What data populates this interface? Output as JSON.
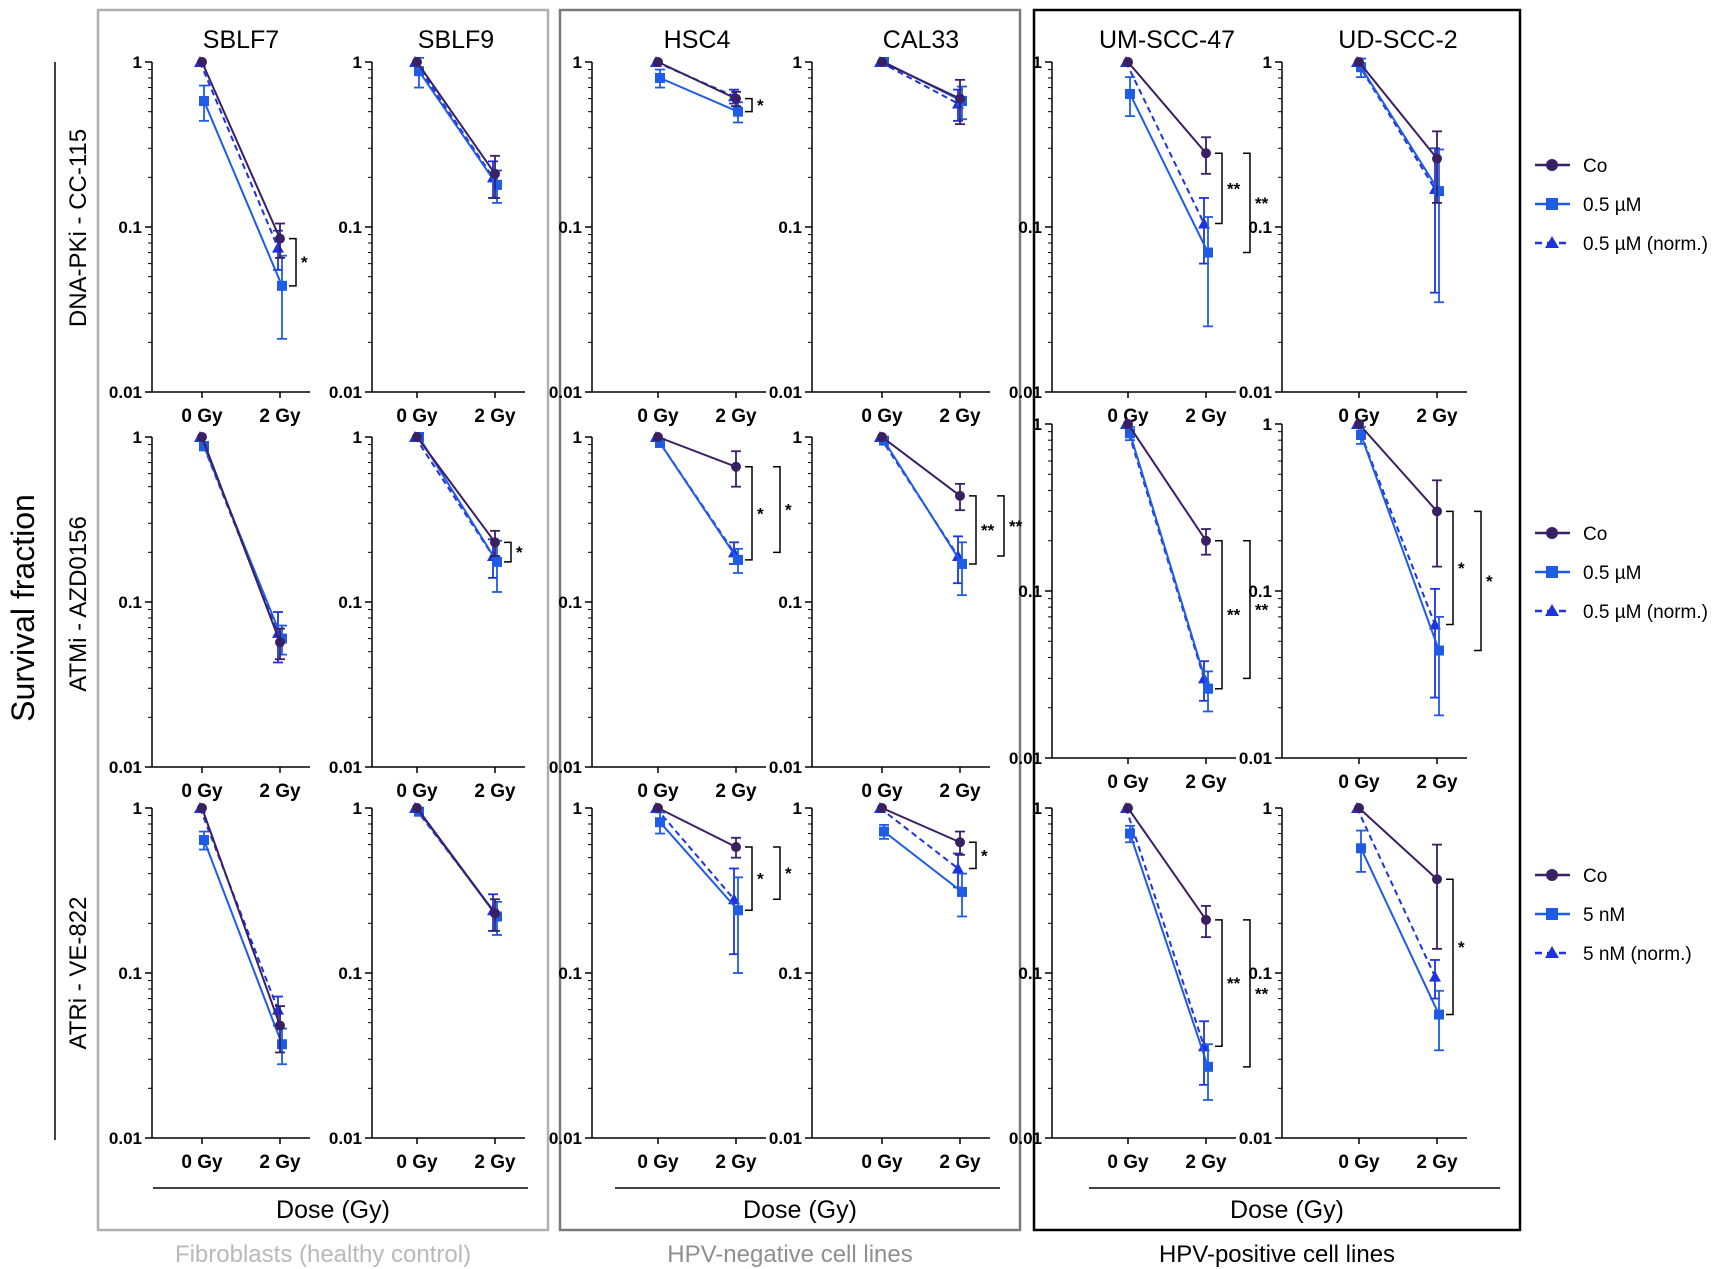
{
  "figure": {
    "y_axis_label": "Survival fraction",
    "colors": {
      "co": "#3b1f63",
      "treated": "#1f5ce6",
      "normalized": "#1e33e0",
      "bracket": "#000000"
    },
    "groups": [
      {
        "label": "Fibroblasts (healthy control)",
        "x_axis_label": "Dose (Gy)",
        "color": "#b9b9b9",
        "border_color": "#b0b0b0"
      },
      {
        "label": "HPV-negative cell lines",
        "x_axis_label": "Dose (Gy)",
        "color": "#8f8f8f",
        "border_color": "#7a7a7a"
      },
      {
        "label": "HPV-positive cell lines",
        "x_axis_label": "Dose (Gy)",
        "color": "#000000",
        "border_color": "#000000"
      }
    ],
    "rows": [
      {
        "label": "DNA-PKi - CC-115",
        "legend": [
          "Co",
          "0.5 µM",
          "0.5 µM (norm.)"
        ]
      },
      {
        "label": "ATMi - AZD0156",
        "legend": [
          "Co",
          "0.5 µM",
          "0.5 µM (norm.)"
        ]
      },
      {
        "label": "ATRi - VE-822",
        "legend": [
          "Co",
          "5 nM",
          "5 nM (norm.)"
        ]
      }
    ],
    "columns": [
      "SBLF7",
      "SBLF9",
      "HSC4",
      "CAL33",
      "UM-SCC-47",
      "UD-SCC-2"
    ],
    "y_tick_labels": [
      "1",
      "0.1",
      "0.01"
    ],
    "x_tick_labels": [
      "0 Gy",
      "2 Gy"
    ]
  },
  "chart_data": {
    "type": "line",
    "y_scale": "log",
    "ylim": [
      0.01,
      1
    ],
    "x": [
      "0 Gy",
      "2 Gy"
    ],
    "series_names": [
      "Co",
      "treated",
      "treated (norm.)"
    ],
    "panels": [
      {
        "row": 0,
        "col": 0,
        "cell": "SBLF7",
        "co": [
          1,
          0.085
        ],
        "tr": [
          0.58,
          0.044
        ],
        "nm": [
          1,
          0.075
        ],
        "e_co": [
          0,
          0.02
        ],
        "e_tr": [
          0.14,
          0.023
        ],
        "e_nm": [
          0,
          0.02
        ],
        "sig": [
          {
            "a": "co",
            "b": "tr",
            "label": "*"
          }
        ]
      },
      {
        "row": 0,
        "col": 1,
        "cell": "SBLF9",
        "co": [
          1,
          0.21
        ],
        "tr": [
          0.88,
          0.18
        ],
        "nm": [
          1,
          0.2
        ],
        "e_co": [
          0,
          0.06
        ],
        "e_tr": [
          0.18,
          0.04
        ],
        "e_nm": [
          0,
          0.05
        ],
        "sig": []
      },
      {
        "row": 0,
        "col": 2,
        "cell": "HSC4",
        "co": [
          1,
          0.6
        ],
        "tr": [
          0.8,
          0.5
        ],
        "nm": [
          1,
          0.62
        ],
        "e_co": [
          0,
          0.06
        ],
        "e_tr": [
          0.1,
          0.07
        ],
        "e_nm": [
          0,
          0.06
        ],
        "sig": [
          {
            "a": "co",
            "b": "tr",
            "label": "*"
          }
        ]
      },
      {
        "row": 0,
        "col": 3,
        "cell": "CAL33",
        "co": [
          1,
          0.6
        ],
        "tr": [
          1,
          0.58
        ],
        "nm": [
          1,
          0.56
        ],
        "e_co": [
          0,
          0.18
        ],
        "e_tr": [
          0,
          0.13
        ],
        "e_nm": [
          0,
          0.12
        ],
        "sig": []
      },
      {
        "row": 0,
        "col": 4,
        "cell": "UM-SCC-47",
        "co": [
          1,
          0.28
        ],
        "tr": [
          0.64,
          0.07
        ],
        "nm": [
          1,
          0.105
        ],
        "e_co": [
          0,
          0.07
        ],
        "e_tr": [
          0.17,
          0.045
        ],
        "e_nm": [
          0,
          0.045
        ],
        "sig": [
          {
            "a": "co",
            "b": "nm",
            "label": "**"
          },
          {
            "a": "co",
            "b": "tr",
            "label": "**"
          }
        ]
      },
      {
        "row": 0,
        "col": 5,
        "cell": "UD-SCC-2",
        "co": [
          1,
          0.26
        ],
        "tr": [
          0.93,
          0.165
        ],
        "nm": [
          1,
          0.17
        ],
        "e_co": [
          0,
          0.12
        ],
        "e_tr": [
          0.12,
          0.13
        ],
        "e_nm": [
          0,
          0.13
        ],
        "sig": []
      },
      {
        "row": 1,
        "col": 0,
        "cell": "SBLF7",
        "co": [
          1,
          0.057
        ],
        "tr": [
          0.88,
          0.06
        ],
        "nm": [
          1,
          0.065
        ],
        "e_co": [
          0,
          0.012
        ],
        "e_tr": [
          0.05,
          0.012
        ],
        "e_nm": [
          0,
          0.022
        ],
        "sig": []
      },
      {
        "row": 1,
        "col": 1,
        "cell": "SBLF9",
        "co": [
          1,
          0.23
        ],
        "tr": [
          1,
          0.175
        ],
        "nm": [
          1,
          0.19
        ],
        "e_co": [
          0,
          0.04
        ],
        "e_tr": [
          0,
          0.06
        ],
        "e_nm": [
          0,
          0.05
        ],
        "sig": [
          {
            "a": "co",
            "b": "tr",
            "label": "*"
          }
        ]
      },
      {
        "row": 1,
        "col": 2,
        "cell": "HSC4",
        "co": [
          1,
          0.66
        ],
        "tr": [
          0.92,
          0.18
        ],
        "nm": [
          1,
          0.2
        ],
        "e_co": [
          0,
          0.16
        ],
        "e_tr": [
          0.04,
          0.03
        ],
        "e_nm": [
          0,
          0.03
        ],
        "sig": [
          {
            "a": "co",
            "b": "tr",
            "label": "*"
          },
          {
            "a": "co",
            "b": "nm",
            "label": "*"
          }
        ]
      },
      {
        "row": 1,
        "col": 3,
        "cell": "CAL33",
        "co": [
          1,
          0.44
        ],
        "tr": [
          0.95,
          0.17
        ],
        "nm": [
          1,
          0.19
        ],
        "e_co": [
          0,
          0.08
        ],
        "e_tr": [
          0.04,
          0.06
        ],
        "e_nm": [
          0,
          0.06
        ],
        "sig": [
          {
            "a": "co",
            "b": "tr",
            "label": "**"
          },
          {
            "a": "co",
            "b": "nm",
            "label": "**"
          }
        ]
      },
      {
        "row": 1,
        "col": 4,
        "cell": "UM-SCC-47",
        "co": [
          1,
          0.2
        ],
        "tr": [
          0.88,
          0.026
        ],
        "nm": [
          1,
          0.03
        ],
        "e_co": [
          0,
          0.035
        ],
        "e_tr": [
          0.08,
          0.007
        ],
        "e_nm": [
          0,
          0.008
        ],
        "sig": [
          {
            "a": "co",
            "b": "tr",
            "label": "**"
          },
          {
            "a": "co",
            "b": "nm",
            "label": "**"
          }
        ]
      },
      {
        "row": 1,
        "col": 5,
        "cell": "UD-SCC-2",
        "co": [
          1,
          0.3
        ],
        "tr": [
          0.86,
          0.044
        ],
        "nm": [
          1,
          0.063
        ],
        "e_co": [
          0,
          0.16
        ],
        "e_tr": [
          0.1,
          0.026
        ],
        "e_nm": [
          0,
          0.04
        ],
        "sig": [
          {
            "a": "co",
            "b": "nm",
            "label": "*"
          },
          {
            "a": "co",
            "b": "tr",
            "label": "*"
          }
        ]
      },
      {
        "row": 2,
        "col": 0,
        "cell": "SBLF7",
        "co": [
          1,
          0.048
        ],
        "tr": [
          0.64,
          0.037
        ],
        "nm": [
          1,
          0.06
        ],
        "e_co": [
          0,
          0.015
        ],
        "e_tr": [
          0.08,
          0.009
        ],
        "e_nm": [
          0,
          0.012
        ],
        "sig": []
      },
      {
        "row": 2,
        "col": 1,
        "cell": "SBLF9",
        "co": [
          1,
          0.23
        ],
        "tr": [
          0.95,
          0.22
        ],
        "nm": [
          1,
          0.24
        ],
        "e_co": [
          0,
          0.05
        ],
        "e_tr": [
          0.04,
          0.05
        ],
        "e_nm": [
          0,
          0.06
        ],
        "sig": []
      },
      {
        "row": 2,
        "col": 2,
        "cell": "HSC4",
        "co": [
          1,
          0.58
        ],
        "tr": [
          0.82,
          0.24
        ],
        "nm": [
          1,
          0.28
        ],
        "e_co": [
          0,
          0.08
        ],
        "e_tr": [
          0.12,
          0.14
        ],
        "e_nm": [
          0,
          0.15
        ],
        "sig": [
          {
            "a": "co",
            "b": "tr",
            "label": "*"
          },
          {
            "a": "co",
            "b": "nm",
            "label": "*"
          }
        ]
      },
      {
        "row": 2,
        "col": 3,
        "cell": "CAL33",
        "co": [
          1,
          0.62
        ],
        "tr": [
          0.72,
          0.31
        ],
        "nm": [
          1,
          0.43
        ],
        "e_co": [
          0,
          0.1
        ],
        "e_tr": [
          0.07,
          0.09
        ],
        "e_nm": [
          0,
          0.1
        ],
        "sig": [
          {
            "a": "co",
            "b": "nm",
            "label": "*"
          }
        ]
      },
      {
        "row": 2,
        "col": 4,
        "cell": "UM-SCC-47",
        "co": [
          1,
          0.21
        ],
        "tr": [
          0.7,
          0.027
        ],
        "nm": [
          1,
          0.036
        ],
        "e_co": [
          0,
          0.045
        ],
        "e_tr": [
          0.08,
          0.01
        ],
        "e_nm": [
          0,
          0.015
        ],
        "sig": [
          {
            "a": "co",
            "b": "nm",
            "label": "**"
          },
          {
            "a": "co",
            "b": "tr",
            "label": "**"
          }
        ]
      },
      {
        "row": 2,
        "col": 5,
        "cell": "UD-SCC-2",
        "co": [
          1,
          0.37
        ],
        "tr": [
          0.57,
          0.056
        ],
        "nm": [
          1,
          0.095
        ],
        "e_co": [
          0,
          0.23
        ],
        "e_tr": [
          0.16,
          0.022
        ],
        "e_nm": [
          0,
          0.025
        ],
        "sig": [
          {
            "a": "co",
            "b": "tr",
            "label": "*"
          }
        ]
      }
    ]
  }
}
